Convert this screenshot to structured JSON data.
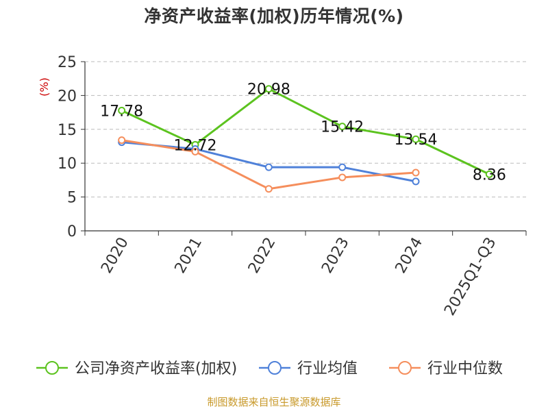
{
  "chart_data": {
    "type": "line",
    "title": "净资产收益率(加权)历年情况(%)",
    "ylabel": "(%)",
    "xlabel": "",
    "categories": [
      "2020",
      "2021",
      "2022",
      "2023",
      "2024",
      "2025Q1-Q3"
    ],
    "ylim": [
      0,
      25
    ],
    "yticks": [
      "0",
      "5",
      "10",
      "15",
      "20",
      "25"
    ],
    "grid": true,
    "legend_position": "bottom",
    "series": [
      {
        "name": "公司净资产收益率(加权)",
        "color": "#5cc31f",
        "values": [
          17.78,
          12.72,
          20.98,
          15.42,
          13.54,
          8.36
        ],
        "labels": [
          "17.78",
          "12.72",
          "20.98",
          "15.42",
          "13.54",
          "8.36"
        ]
      },
      {
        "name": "行业均值",
        "color": "#4f81d9",
        "values": [
          13.1,
          12.1,
          9.4,
          9.4,
          7.3,
          null
        ],
        "labels": []
      },
      {
        "name": "行业中位数",
        "color": "#f58e5c",
        "values": [
          13.4,
          11.7,
          6.2,
          7.9,
          8.6,
          null
        ],
        "labels": []
      }
    ]
  },
  "source": "制图数据来自恒生聚源数据库",
  "colors": {
    "axis": "#333333",
    "grid": "#bbbbbb",
    "ylabel": "#cc0000"
  }
}
